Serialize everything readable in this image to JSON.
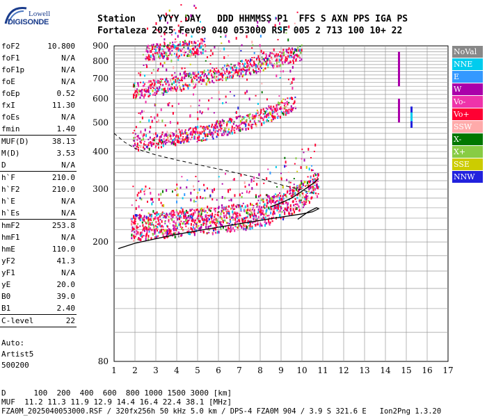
{
  "logo": {
    "top": "Lowell",
    "bottom": "DIGISONDE"
  },
  "header": {
    "labels": "Station    YYYY DAY   DDD HHMMSS P1  FFS S AXN PPS IGA PS",
    "values": "Fortaleza 2025 Fev09 040 053000 RSF 005 2 713 100 10+ 22"
  },
  "params": [
    {
      "name": "foF2",
      "value": "10.800"
    },
    {
      "name": "foF1",
      "value": "N/A"
    },
    {
      "name": "foF1p",
      "value": "N/A"
    },
    {
      "name": "foE",
      "value": "N/A"
    },
    {
      "name": "foEp",
      "value": "0.52"
    },
    {
      "name": "fxI",
      "value": "11.30"
    },
    {
      "name": "foEs",
      "value": "N/A"
    },
    {
      "name": "fmin",
      "value": "1.40"
    },
    {
      "sep": true
    },
    {
      "name": "MUF(D)",
      "value": "38.13"
    },
    {
      "name": "M(D)",
      "value": "3.53"
    },
    {
      "name": "D",
      "value": "N/A"
    },
    {
      "sep": true
    },
    {
      "name": "h`F",
      "value": "210.0"
    },
    {
      "name": "h`F2",
      "value": "210.0"
    },
    {
      "name": "h`E",
      "value": "N/A"
    },
    {
      "name": "h`Es",
      "value": "N/A"
    },
    {
      "sep": true
    },
    {
      "name": "hmF2",
      "value": "253.8"
    },
    {
      "name": "hmF1",
      "value": "N/A"
    },
    {
      "name": "hmE",
      "value": "110.0"
    },
    {
      "name": "yF2",
      "value": "41.3"
    },
    {
      "name": "yF1",
      "value": "N/A"
    },
    {
      "name": "yE",
      "value": "20.0"
    },
    {
      "name": "B0",
      "value": "39.0"
    },
    {
      "name": "B1",
      "value": "2.40"
    },
    {
      "sep": true
    },
    {
      "name": "C-level",
      "value": "22"
    },
    {
      "sep": true
    }
  ],
  "auto": {
    "line1": "Auto:",
    "line2": "Artist5",
    "line3": "500200"
  },
  "footer": {
    "d_line": "D      100  200  400  600  800 1000 1500 3000 [km]",
    "muf_line": "MUF  11.2 11.3 11.9 12.9 14.4 16.4 22.4 38.1 [MHz]",
    "file_line": "FZA0M_2025040053000.RSF / 320fx256h 50 kHz 5.0 km / DPS-4 FZA0M 904 / 3.9 S 321.6 E   Ion2Png 1.3.20"
  },
  "legend": [
    {
      "label": "NoVal",
      "color": "#888888"
    },
    {
      "label": "NNE",
      "color": "#00ccee"
    },
    {
      "label": "E",
      "color": "#3399ff"
    },
    {
      "label": "W",
      "color": "#aa00aa"
    },
    {
      "label": "Vo-",
      "color": "#ee33aa"
    },
    {
      "label": "Vo+",
      "color": "#ff0033"
    },
    {
      "label": "SSW",
      "color": "#ffaaaa"
    },
    {
      "label": "X-",
      "color": "#007700"
    },
    {
      "label": "X+",
      "color": "#88cc44"
    },
    {
      "label": "SSE",
      "color": "#cccc00"
    },
    {
      "label": "NNW",
      "color": "#2222dd"
    }
  ],
  "chart_data": {
    "type": "scatter",
    "xlabel": "",
    "ylabel": "",
    "xlim": [
      1,
      17
    ],
    "ylim": [
      80,
      900
    ],
    "x_ticks": [
      1,
      2,
      3,
      4,
      5,
      6,
      7,
      8,
      9,
      10,
      11,
      12,
      13,
      14,
      15,
      16,
      17
    ],
    "y_ticks": [
      80,
      200,
      300,
      400,
      500,
      600,
      700,
      800,
      900
    ],
    "y_scale": "log",
    "grid": true,
    "traces": [
      {
        "name": "O-trace virtual height (1st hop)",
        "style": "echo-band",
        "points": [
          [
            1.8,
            225
          ],
          [
            2.5,
            228
          ],
          [
            3.5,
            232
          ],
          [
            4.5,
            235
          ],
          [
            5.5,
            238
          ],
          [
            6.5,
            242
          ],
          [
            7.5,
            248
          ],
          [
            8.5,
            258
          ],
          [
            9.5,
            275
          ],
          [
            10.2,
            295
          ],
          [
            10.8,
            320
          ]
        ]
      },
      {
        "name": "2nd hop",
        "style": "echo-band",
        "points": [
          [
            1.9,
            430
          ],
          [
            3,
            440
          ],
          [
            4,
            450
          ],
          [
            5,
            462
          ],
          [
            6,
            478
          ],
          [
            7,
            500
          ],
          [
            8,
            525
          ],
          [
            9,
            560
          ],
          [
            9.7,
            590
          ]
        ]
      },
      {
        "name": "3rd hop",
        "style": "echo-band",
        "points": [
          [
            1.9,
            640
          ],
          [
            3,
            660
          ],
          [
            4,
            680
          ],
          [
            5,
            705
          ],
          [
            6,
            730
          ],
          [
            7,
            760
          ],
          [
            8,
            795
          ],
          [
            9,
            830
          ],
          [
            10,
            860
          ]
        ]
      },
      {
        "name": "4th hop",
        "style": "echo-band",
        "points": [
          [
            2.5,
            860
          ],
          [
            3.5,
            875
          ],
          [
            4.5,
            890
          ],
          [
            5.3,
            905
          ]
        ]
      }
    ],
    "profile_solid": [
      [
        1.2,
        190
      ],
      [
        2,
        198
      ],
      [
        3,
        205
      ],
      [
        4,
        212
      ],
      [
        5,
        218
      ],
      [
        6,
        224
      ],
      [
        7,
        230
      ],
      [
        8,
        236
      ],
      [
        9,
        242
      ],
      [
        10,
        248
      ],
      [
        10.5,
        252
      ],
      [
        10.8,
        258
      ],
      [
        10.7,
        260
      ],
      [
        10.3,
        252
      ],
      [
        9.8,
        238
      ]
    ],
    "profile_fit": [
      [
        8.5,
        262
      ],
      [
        9.0,
        270
      ],
      [
        9.5,
        280
      ],
      [
        10.0,
        295
      ],
      [
        10.5,
        312
      ],
      [
        10.8,
        325
      ]
    ],
    "profile_dashed": [
      [
        1.0,
        460
      ],
      [
        1.5,
        430
      ],
      [
        2,
        410
      ],
      [
        3,
        390
      ],
      [
        4,
        375
      ],
      [
        5,
        362
      ],
      [
        6,
        350
      ],
      [
        7,
        338
      ],
      [
        8,
        325
      ],
      [
        9,
        310
      ],
      [
        10,
        298
      ],
      [
        10.6,
        290
      ]
    ],
    "vertical_markers": [
      {
        "x": 14.65,
        "y1": 660,
        "y2": 860,
        "color": "#aa00aa"
      },
      {
        "x": 14.65,
        "y1": 500,
        "y2": 600,
        "color": "#aa00aa"
      },
      {
        "x": 15.25,
        "y1": 480,
        "y2": 565,
        "color": "#2222dd"
      },
      {
        "x": 15.25,
        "y1": 505,
        "y2": 540,
        "color": "#00ccee"
      }
    ]
  }
}
